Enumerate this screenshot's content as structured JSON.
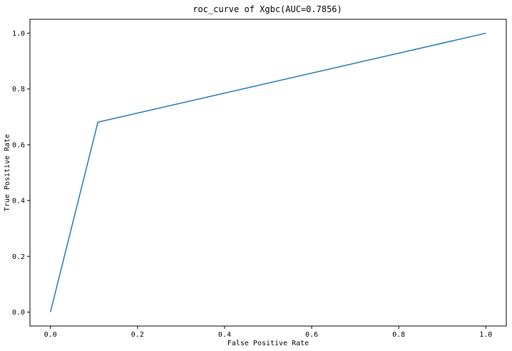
{
  "chart_data": {
    "type": "line",
    "title": "roc_curve of Xgbc(AUC=0.7856)",
    "xlabel": "False Positive Rate",
    "ylabel": "True Positive Rate",
    "xlim": [
      -0.047,
      1.047
    ],
    "ylim": [
      -0.05,
      1.05
    ],
    "xticks": [
      0.0,
      0.2,
      0.4,
      0.6,
      0.8,
      1.0
    ],
    "xtick_labels": [
      "0.0",
      "0.2",
      "0.4",
      "0.6",
      "0.8",
      "1.0"
    ],
    "yticks": [
      0.0,
      0.2,
      0.4,
      0.6,
      0.8,
      1.0
    ],
    "ytick_labels": [
      "0.0",
      "0.2",
      "0.4",
      "0.6",
      "0.8",
      "1.0"
    ],
    "grid": false,
    "legend": "none",
    "series": [
      {
        "color": "#1f77b4",
        "x": [
          0.0,
          0.109,
          1.0
        ],
        "y": [
          0.0,
          0.681,
          1.0
        ]
      }
    ]
  }
}
